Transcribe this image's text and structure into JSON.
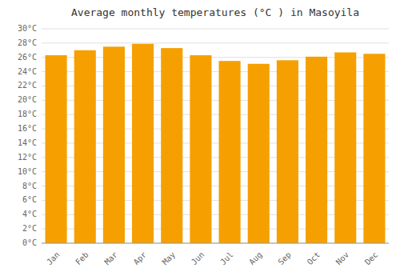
{
  "chart_data": {
    "type": "bar",
    "title": "Average monthly temperatures (°C ) in Masoyila",
    "categories": [
      "Jan",
      "Feb",
      "Mar",
      "Apr",
      "May",
      "Jun",
      "Jul",
      "Aug",
      "Sep",
      "Oct",
      "Nov",
      "Dec"
    ],
    "values": [
      26.3,
      27.0,
      27.5,
      27.9,
      27.3,
      26.3,
      25.5,
      25.1,
      25.6,
      26.1,
      26.7,
      26.5
    ],
    "color": "#F5A000",
    "ylim": [
      0,
      30
    ],
    "yticks": [
      {
        "value": 0,
        "label": "0°C"
      },
      {
        "value": 2,
        "label": "2°C"
      },
      {
        "value": 4,
        "label": "4°C"
      },
      {
        "value": 6,
        "label": "6°C"
      },
      {
        "value": 8,
        "label": "8°C"
      },
      {
        "value": 10,
        "label": "10°C"
      },
      {
        "value": 12,
        "label": "12°C"
      },
      {
        "value": 14,
        "label": "14°C"
      },
      {
        "value": 16,
        "label": "16°C"
      },
      {
        "value": 18,
        "label": "18°C"
      },
      {
        "value": 20,
        "label": "20°C"
      },
      {
        "value": 22,
        "label": "22°C"
      },
      {
        "value": 24,
        "label": "24°C"
      },
      {
        "value": 26,
        "label": "26°C"
      },
      {
        "value": 28,
        "label": "28°C"
      },
      {
        "value": 30,
        "label": "30°C"
      }
    ],
    "grid": true
  }
}
